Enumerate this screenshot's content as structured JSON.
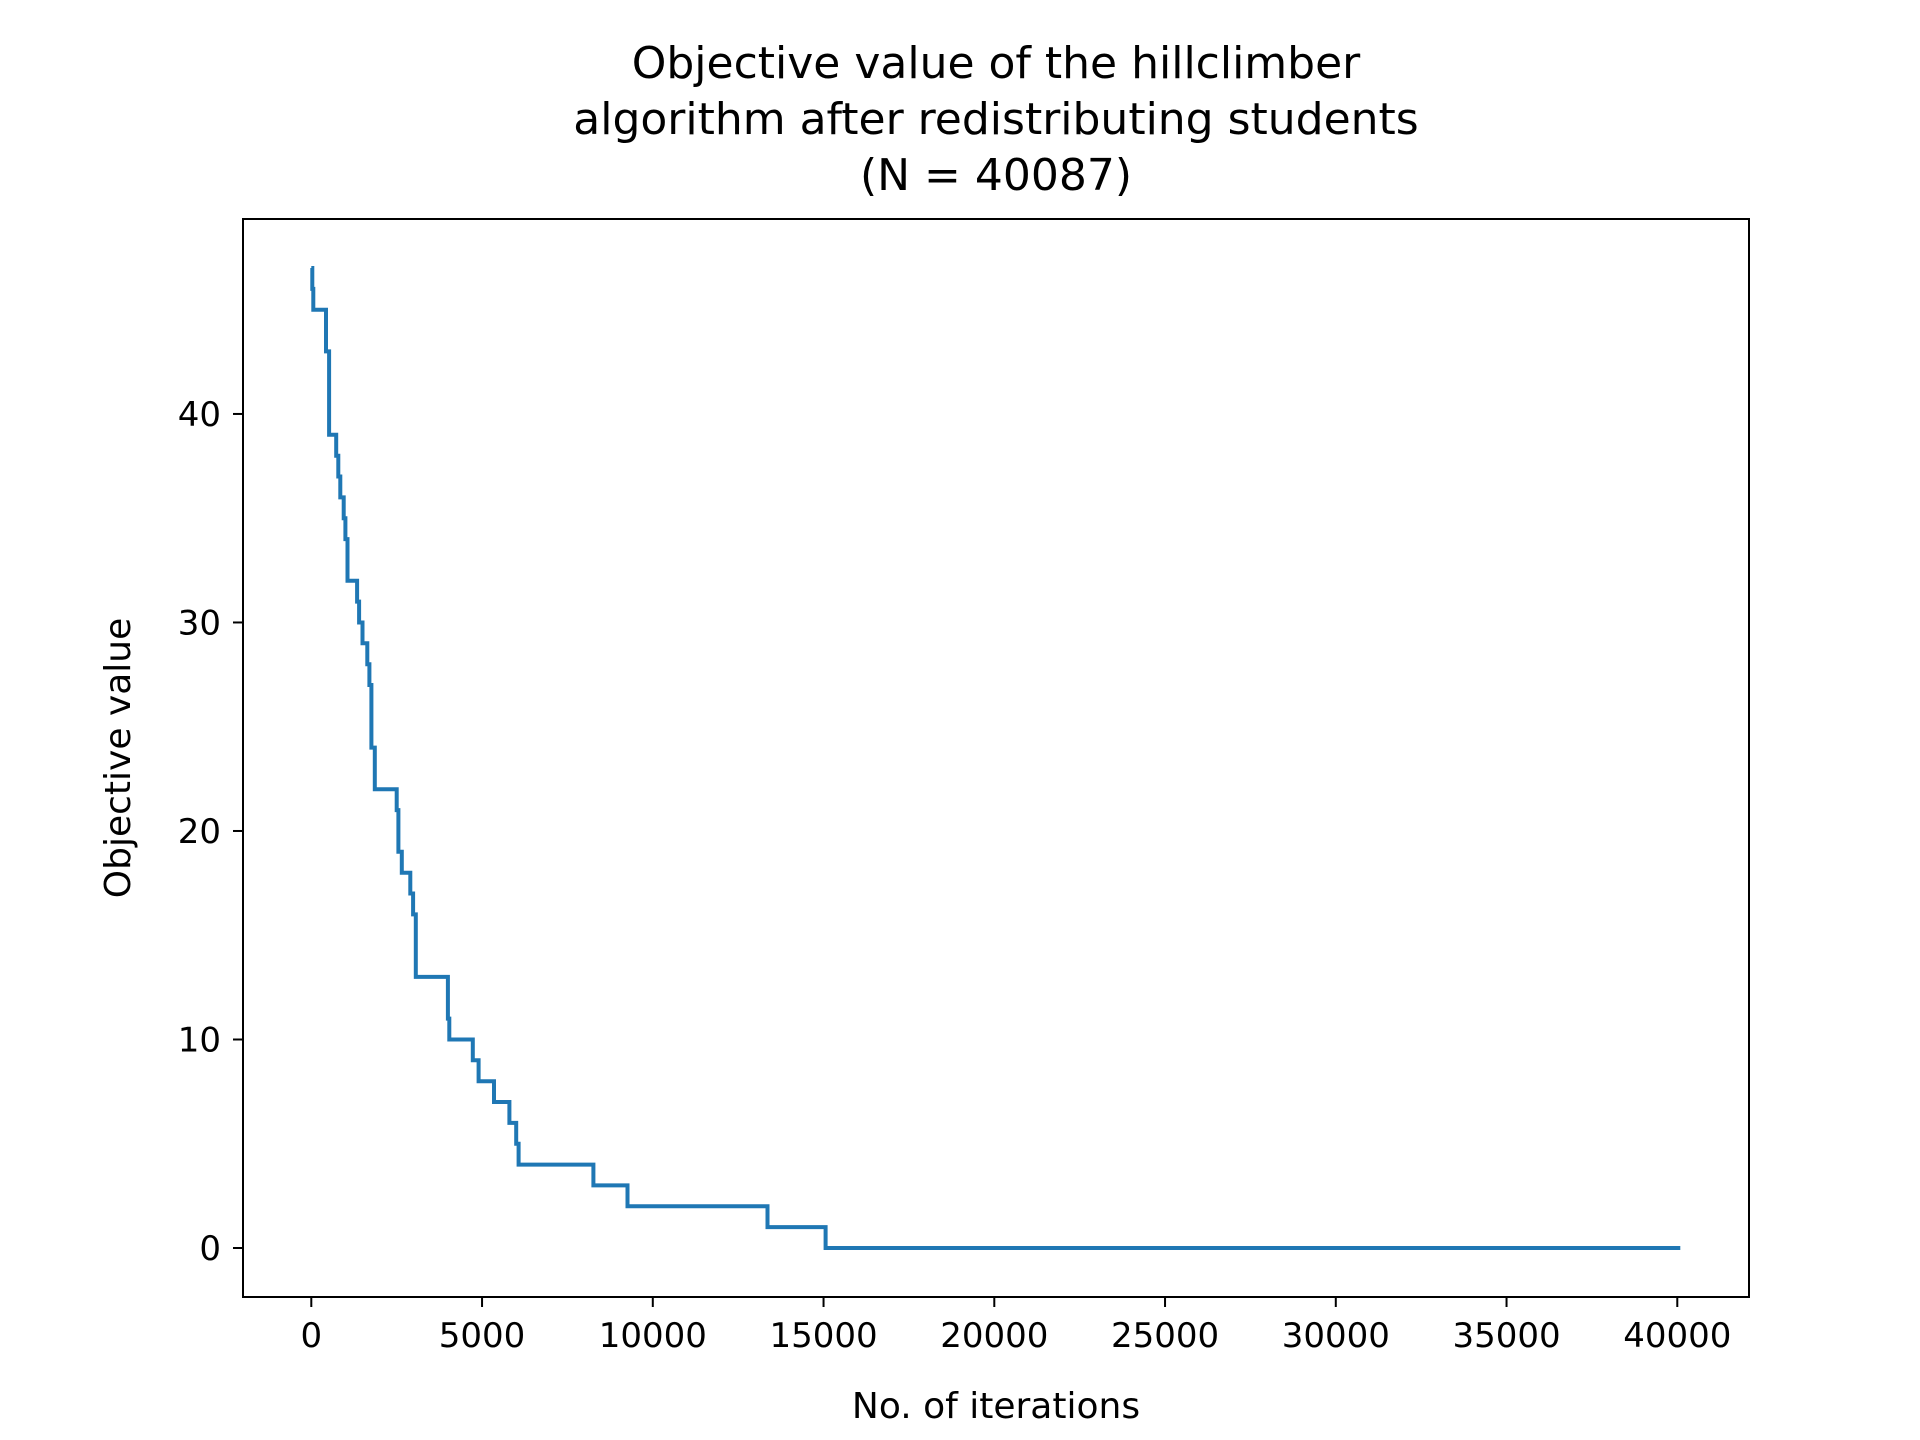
{
  "chart_data": {
    "type": "line",
    "title": [
      "Objective value of the hillclimber",
      "algorithm after redistributing students",
      "(N = 40087)"
    ],
    "xlabel": "No. of iterations",
    "ylabel": "Objective value",
    "xlim": [
      -2000,
      42100
    ],
    "ylim": [
      -2.35,
      49.35
    ],
    "xticks": [
      0,
      5000,
      10000,
      15000,
      20000,
      25000,
      30000,
      35000,
      40000
    ],
    "yticks": [
      0,
      10,
      20,
      30,
      40
    ],
    "grid": false,
    "legend": "none",
    "step": true,
    "series": [
      {
        "color": "#1f77b4",
        "x": [
          0,
          30,
          60,
          300,
          430,
          520,
          700,
          730,
          790,
          850,
          950,
          1000,
          1060,
          1200,
          1340,
          1400,
          1500,
          1640,
          1700,
          1760,
          1800,
          1860,
          2450,
          2500,
          2550,
          2650,
          2900,
          2980,
          3060,
          3960,
          4000,
          4040,
          4650,
          4730,
          4900,
          5200,
          5350,
          5800,
          5860,
          6000,
          6070,
          8200,
          8260,
          9200,
          9260,
          13300,
          13360,
          15000,
          15060,
          40087
        ],
        "y": [
          47,
          46,
          45,
          45,
          43,
          39,
          39,
          38,
          37,
          36,
          35,
          34,
          32,
          32,
          31,
          30,
          29,
          28,
          27,
          24,
          24,
          22,
          22,
          21,
          19,
          18,
          17,
          16,
          13,
          13,
          11,
          10,
          10,
          9,
          8,
          8,
          7,
          6,
          6,
          5,
          4,
          4,
          3,
          3,
          2,
          2,
          1,
          1,
          0,
          0
        ]
      }
    ]
  }
}
